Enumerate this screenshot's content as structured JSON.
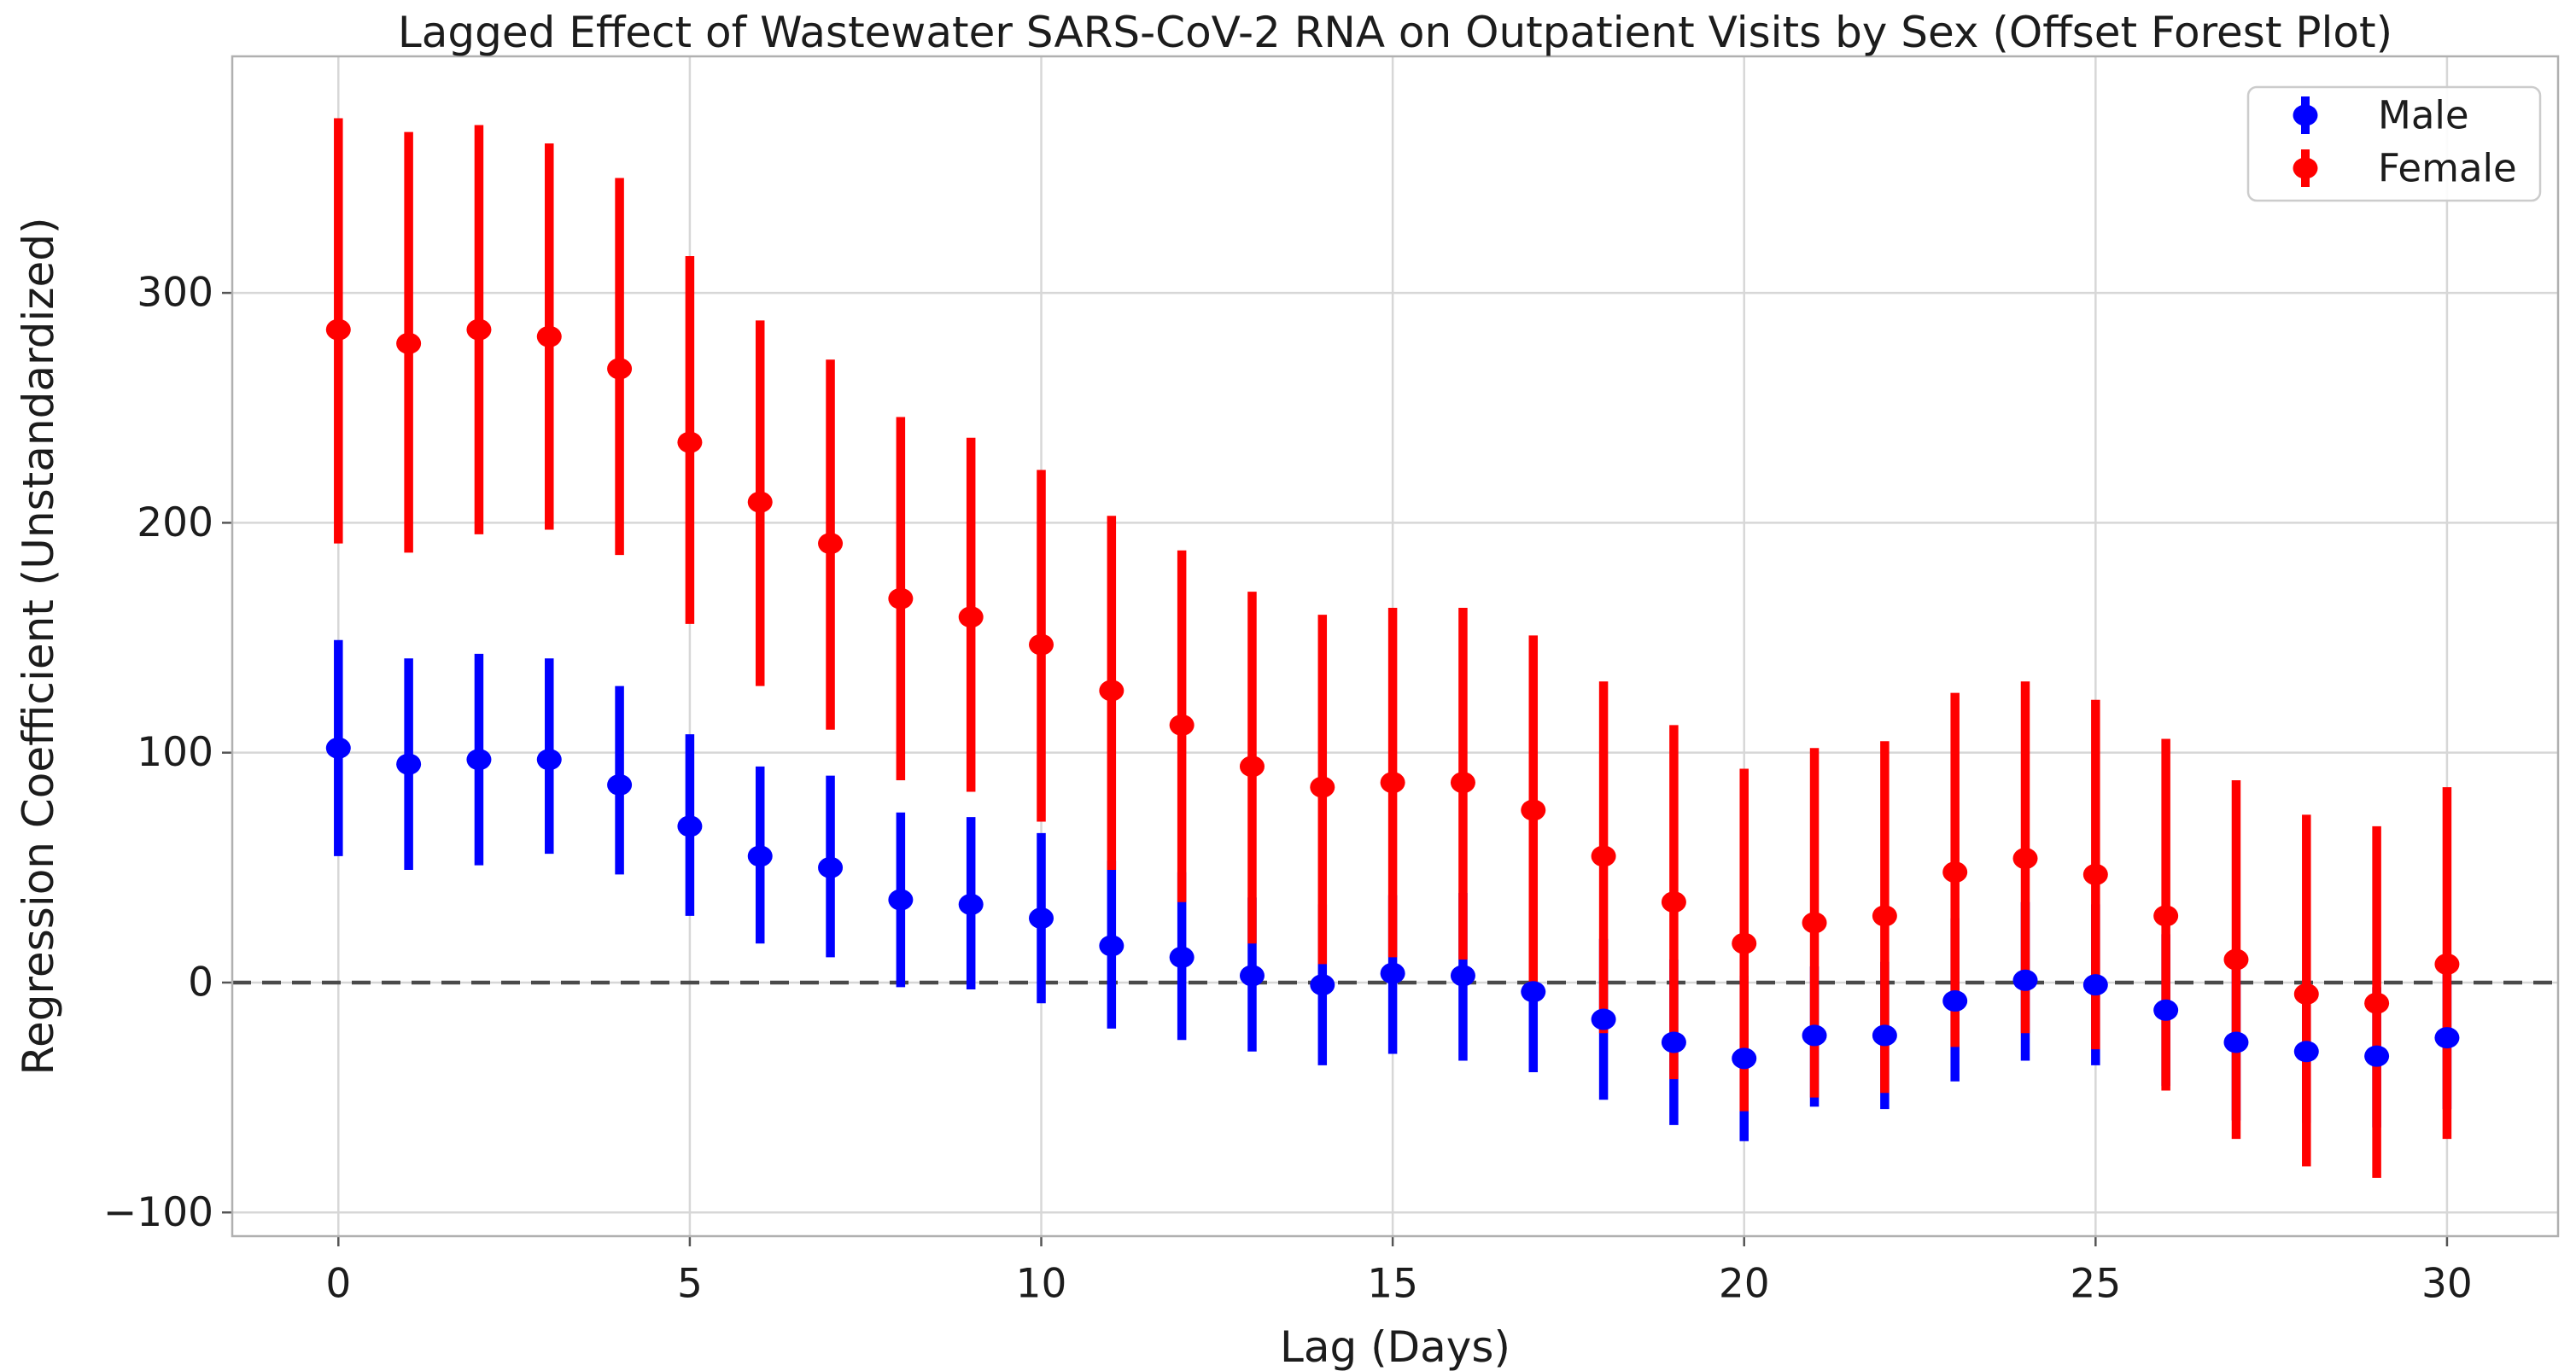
{
  "chart_data": {
    "type": "errorbar-forest",
    "title": "Lagged Effect of Wastewater SARS-CoV-2 RNA on Outpatient Visits by Sex (Offset Forest Plot)",
    "xlabel": "Lag (Days)",
    "ylabel": "Regression Coefficient (Unstandardized)",
    "x_ticks": [
      0,
      5,
      10,
      15,
      20,
      25,
      30
    ],
    "y_ticks": [
      -100,
      0,
      100,
      200,
      300
    ],
    "xlim": [
      -1.51,
      31.58
    ],
    "ylim": [
      -110.3,
      402.9
    ],
    "grid": true,
    "zero_line": {
      "y": 0,
      "style": "dashed",
      "color": "#4a4a4a"
    },
    "legend": {
      "position": "top-right",
      "entries": [
        {
          "label": "Male",
          "color": "#0000ff"
        },
        {
          "label": "Female",
          "color": "#ff0000"
        }
      ]
    },
    "lags": [
      0,
      1,
      2,
      3,
      4,
      5,
      6,
      7,
      8,
      9,
      10,
      11,
      12,
      13,
      14,
      15,
      16,
      17,
      18,
      19,
      20,
      21,
      22,
      23,
      24,
      25,
      26,
      27,
      28,
      29,
      30
    ],
    "series": [
      {
        "name": "Male",
        "color": "#0000ff",
        "coef": [
          102,
          95,
          97,
          97,
          86,
          68,
          55,
          50,
          36,
          34,
          28,
          16,
          11,
          3,
          -1,
          4,
          3,
          -4,
          -16,
          -26,
          -33,
          -23,
          -23,
          -8,
          1,
          -1,
          -12,
          -26,
          -30,
          -32,
          -24
        ],
        "ci_low": [
          55,
          49,
          51,
          56,
          47,
          29,
          17,
          11,
          -2,
          -3,
          -9,
          -20,
          -25,
          -30,
          -36,
          -31,
          -34,
          -39,
          -51,
          -62,
          -69,
          -54,
          -55,
          -43,
          -34,
          -36,
          -45,
          -60,
          -61,
          -63,
          -55
        ],
        "ci_high": [
          149,
          141,
          143,
          141,
          129,
          108,
          94,
          90,
          74,
          72,
          65,
          53,
          48,
          37,
          34,
          38,
          39,
          31,
          19,
          10,
          3,
          7,
          9,
          28,
          35,
          34,
          21,
          8,
          1,
          -2,
          6
        ]
      },
      {
        "name": "Female",
        "color": "#ff0000",
        "coef": [
          284,
          278,
          284,
          281,
          267,
          235,
          209,
          191,
          167,
          159,
          147,
          127,
          112,
          94,
          85,
          87,
          87,
          75,
          55,
          35,
          17,
          26,
          29,
          48,
          54,
          47,
          29,
          10,
          -5,
          -9,
          8
        ],
        "ci_low": [
          191,
          187,
          195,
          197,
          186,
          156,
          129,
          110,
          88,
          83,
          70,
          49,
          35,
          17,
          8,
          11,
          10,
          0,
          -22,
          -42,
          -56,
          -50,
          -48,
          -28,
          -22,
          -29,
          -47,
          -68,
          -80,
          -85,
          -68
        ],
        "ci_high": [
          376,
          370,
          373,
          365,
          350,
          316,
          288,
          271,
          246,
          237,
          223,
          203,
          188,
          170,
          160,
          163,
          163,
          151,
          131,
          112,
          93,
          102,
          105,
          126,
          131,
          123,
          106,
          88,
          73,
          68,
          85
        ]
      }
    ],
    "style": {
      "grid_color": "#d7d7d7",
      "spine_color": "#b0b0b0",
      "tick_color": "#555555",
      "text_color": "#1c1c1c",
      "plot_bg": "#ffffff"
    }
  }
}
